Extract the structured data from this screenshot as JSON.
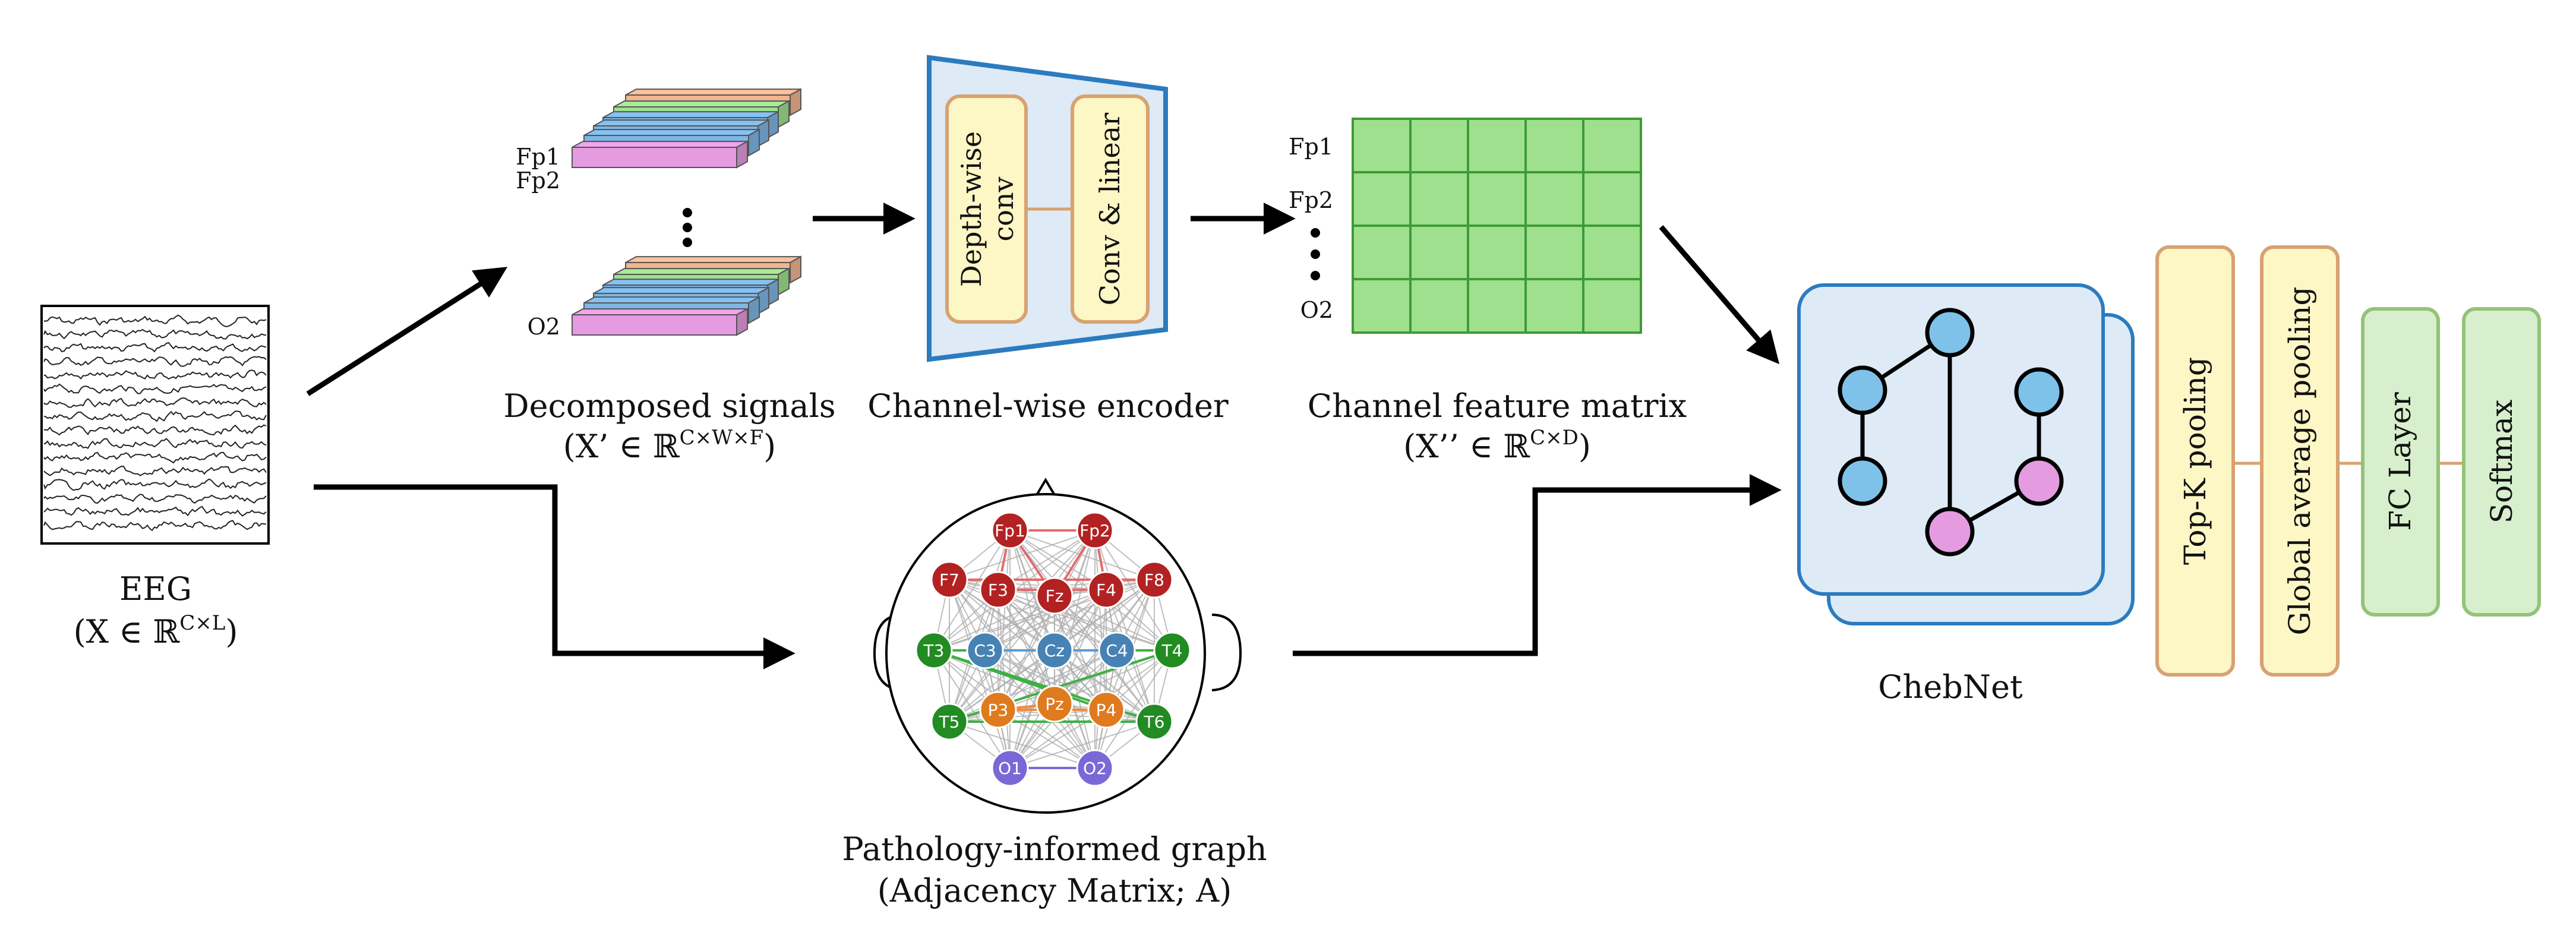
{
  "eeg": {
    "title": "EEG",
    "formula": "(X ∈ ℝ",
    "formula_sup": "C×L",
    "formula_end": ")"
  },
  "decomposed": {
    "title": "Decomposed signals",
    "formula": "(X’ ∈ ℝ",
    "formula_sup": "C×W×F",
    "formula_end": ")",
    "channels": [
      "Fp1",
      "Fp2",
      "O2"
    ]
  },
  "encoder": {
    "title": "Channel-wise encoder",
    "block1_line1": "Depth-wise",
    "block1_line2": "conv",
    "block2": "Conv & linear"
  },
  "feature_matrix": {
    "title": "Channel feature matrix",
    "formula": "(X’’ ∈ ℝ",
    "formula_sup": "C×D",
    "formula_end": ")",
    "channels": [
      "Fp1",
      "Fp2",
      "O2"
    ]
  },
  "graph": {
    "title": "Pathology-informed graph",
    "subtitle": "(Adjacency Matrix; A)",
    "electrodes": [
      "Fp1",
      "Fp2",
      "F7",
      "F3",
      "Fz",
      "F4",
      "F8",
      "T3",
      "C3",
      "Cz",
      "C4",
      "T4",
      "T5",
      "P3",
      "Pz",
      "P4",
      "T6",
      "O1",
      "O2"
    ]
  },
  "chebnet": {
    "title": "ChebNet"
  },
  "layers": {
    "topk": "Top-K pooling",
    "gap": "Global average pooling",
    "fc": "FC Layer",
    "softmax": "Softmax"
  },
  "colors": {
    "pink": "#e49be0",
    "blue": "#7eb6e4",
    "green": "#9ee08e",
    "orange": "#f2b591",
    "yellow_fill": "#fdf6c5",
    "yellow_border": "#d7a271",
    "green_fill": "#d7efcc",
    "green_border": "#93c37a",
    "encoder_fill": "#deeaf6",
    "encoder_border": "#2c7bbf",
    "node_red": "#b22222",
    "node_blue": "#4682b4",
    "node_green": "#228b22",
    "node_orange": "#e07a1f",
    "node_purple": "#7b68d6"
  }
}
